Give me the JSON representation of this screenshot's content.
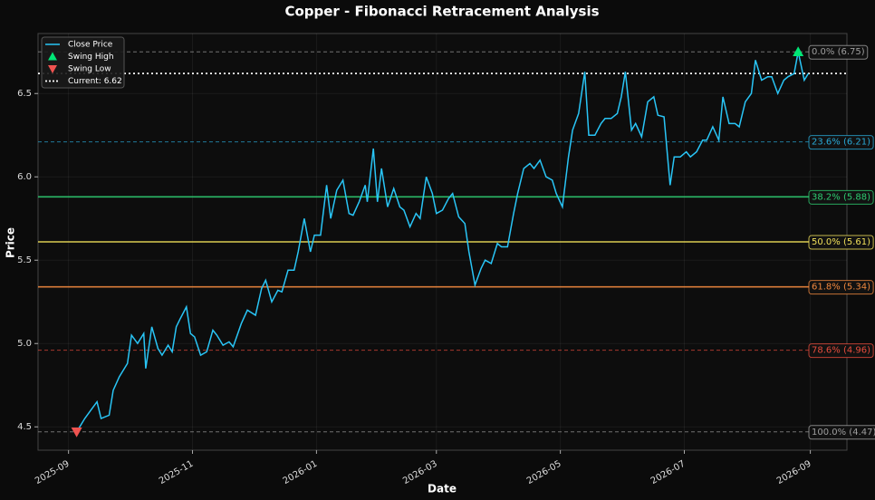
{
  "chart_data": {
    "type": "line",
    "title": "Copper - Fibonacci Retracement Analysis",
    "xlabel": "Date",
    "ylabel": "Price",
    "x": [
      4,
      8,
      11,
      14,
      16,
      20,
      22,
      25,
      29,
      31,
      34,
      37,
      38,
      41,
      44,
      46,
      49,
      51,
      53,
      55,
      58,
      60,
      62,
      65,
      68,
      71,
      73,
      76,
      79,
      81,
      85,
      88,
      92,
      95,
      97,
      100,
      103,
      105,
      108,
      111,
      113,
      116,
      119,
      121,
      124,
      127,
      129,
      132,
      135,
      138,
      140,
      143,
      146,
      147,
      150,
      152,
      154,
      157,
      160,
      163,
      165,
      168,
      171,
      173,
      176,
      179,
      181,
      184,
      187,
      189,
      192,
      195,
      197,
      200,
      203,
      205,
      208,
      211,
      213,
      216,
      219,
      221,
      224,
      227,
      229,
      232,
      235,
      238,
      240,
      243,
      246,
      248,
      251,
      254,
      256,
      259,
      262,
      264,
      267,
      270,
      272,
      274,
      277,
      279,
      282,
      285,
      288,
      290,
      293,
      296,
      298,
      301,
      304,
      306,
      309,
      312,
      314,
      317,
      320,
      322,
      325,
      328,
      330,
      333,
      336,
      338,
      341,
      344,
      346,
      349,
      352,
      354,
      357,
      359,
      362,
      364
    ],
    "series": [
      {
        "name": "Close Price",
        "color": "#29c5f6",
        "values": [
          4.47,
          4.55,
          4.6,
          4.65,
          4.55,
          4.57,
          4.72,
          4.8,
          4.88,
          5.05,
          5.0,
          5.06,
          4.85,
          5.1,
          4.97,
          4.93,
          4.99,
          4.95,
          5.1,
          5.15,
          5.22,
          5.06,
          5.04,
          4.93,
          4.95,
          5.08,
          5.05,
          4.99,
          5.01,
          4.98,
          5.12,
          5.2,
          5.17,
          5.33,
          5.38,
          5.25,
          5.32,
          5.31,
          5.44,
          5.44,
          5.55,
          5.75,
          5.55,
          5.65,
          5.65,
          5.95,
          5.75,
          5.92,
          5.98,
          5.78,
          5.77,
          5.85,
          5.95,
          5.85,
          6.17,
          5.85,
          6.05,
          5.82,
          5.93,
          5.82,
          5.8,
          5.7,
          5.78,
          5.75,
          6.0,
          5.9,
          5.78,
          5.8,
          5.87,
          5.9,
          5.76,
          5.72,
          5.55,
          5.35,
          5.45,
          5.5,
          5.48,
          5.6,
          5.58,
          5.58,
          5.78,
          5.9,
          6.05,
          6.08,
          6.05,
          6.1,
          6.0,
          5.98,
          5.9,
          5.82,
          6.12,
          6.28,
          6.38,
          6.63,
          6.25,
          6.25,
          6.32,
          6.35,
          6.35,
          6.38,
          6.48,
          6.63,
          6.28,
          6.32,
          6.24,
          6.45,
          6.48,
          6.37,
          6.36,
          5.95,
          6.12,
          6.12,
          6.15,
          6.12,
          6.15,
          6.22,
          6.22,
          6.3,
          6.22,
          6.48,
          6.32,
          6.32,
          6.3,
          6.45,
          6.5,
          6.7,
          6.58,
          6.6,
          6.6,
          6.5,
          6.58,
          6.6,
          6.62,
          6.75,
          6.58,
          6.62
        ]
      }
    ],
    "swing_high": {
      "name": "Swing High",
      "x": 359,
      "value": 6.75,
      "color": "#00e676"
    },
    "swing_low": {
      "name": "Swing Low",
      "x": 4,
      "value": 4.47,
      "color": "#ef5350"
    },
    "current": {
      "name": "Current: 6.62",
      "value": 6.62,
      "color": "#ffffff"
    },
    "levels": [
      {
        "label": "0.0% (6.75)",
        "value": 6.75,
        "color": "#9e9e9e",
        "style": "dashed"
      },
      {
        "label": "23.6% (6.21)",
        "value": 6.21,
        "color": "#29a9d6",
        "style": "dashed"
      },
      {
        "label": "38.2% (5.88)",
        "value": 5.88,
        "color": "#2ecc71",
        "style": "solid"
      },
      {
        "label": "50.0% (5.61)",
        "value": 5.61,
        "color": "#f1e05a",
        "style": "solid"
      },
      {
        "label": "61.8% (5.34)",
        "value": 5.34,
        "color": "#f0883e",
        "style": "solid"
      },
      {
        "label": "78.6% (4.96)",
        "value": 4.96,
        "color": "#e74c3c",
        "style": "dashed"
      },
      {
        "label": "100.0% (4.47)",
        "value": 4.47,
        "color": "#9e9e9e",
        "style": "dashed"
      }
    ],
    "xlim": [
      -15,
      383
    ],
    "xticks": [
      {
        "value": 0,
        "label": "2025-09"
      },
      {
        "value": 61,
        "label": "2025-11"
      },
      {
        "value": 122,
        "label": "2026-01"
      },
      {
        "value": 181,
        "label": "2026-03"
      },
      {
        "value": 242,
        "label": "2026-05"
      },
      {
        "value": 303,
        "label": "2026-07"
      },
      {
        "value": 365,
        "label": "2026-09"
      }
    ],
    "ylim": [
      4.36,
      6.86
    ],
    "yticks": [
      4.5,
      {
        "value": 5,
        "label": "5.0"
      },
      5.5,
      {
        "value": 6,
        "label": "6.0"
      },
      6.5
    ],
    "grid": true,
    "legend": "upper left"
  }
}
